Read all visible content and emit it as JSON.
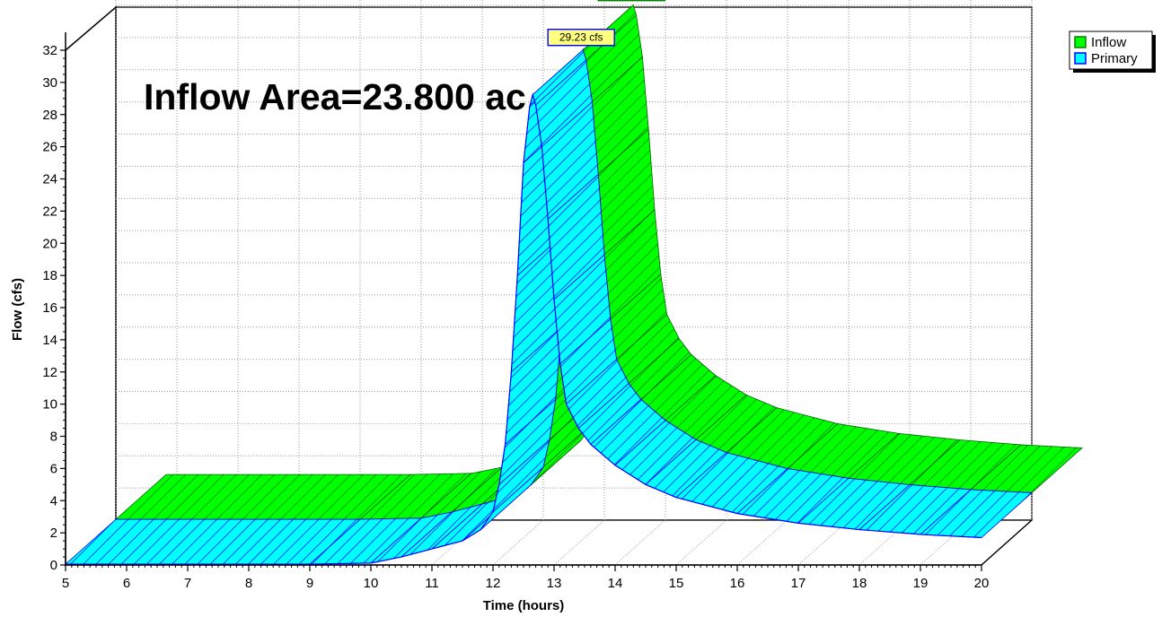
{
  "chart_data": {
    "type": "area",
    "xlabel": "Time  (hours)",
    "ylabel": "Flow  (cfs)",
    "annotation": "Inflow Area=23.800 ac",
    "xlim": [
      5,
      20
    ],
    "ylim": [
      0,
      32
    ],
    "x_ticks": [
      5,
      6,
      7,
      8,
      9,
      10,
      11,
      12,
      13,
      14,
      15,
      16,
      17,
      18,
      19,
      20
    ],
    "y_ticks": [
      0,
      2,
      4,
      6,
      8,
      10,
      12,
      14,
      16,
      18,
      20,
      22,
      24,
      26,
      28,
      30,
      32
    ],
    "legend_position": "top-right",
    "grid": true,
    "series": [
      {
        "name": "Inflow",
        "color": "#00ff00",
        "peak_label": "29.23 cfs",
        "peak_label_bg": "#ffff80",
        "points": [
          [
            5,
            0.05
          ],
          [
            9,
            0.05
          ],
          [
            10,
            0.12
          ],
          [
            10.5,
            0.5
          ],
          [
            11,
            1.0
          ],
          [
            11.5,
            1.5
          ],
          [
            11.8,
            2.2
          ],
          [
            12.0,
            3.3
          ],
          [
            12.1,
            5.0
          ],
          [
            12.2,
            7.5
          ],
          [
            12.3,
            12.0
          ],
          [
            12.4,
            18.0
          ],
          [
            12.5,
            25.0
          ],
          [
            12.6,
            28.5
          ],
          [
            12.65,
            29.23
          ],
          [
            12.7,
            28.6
          ],
          [
            12.8,
            26.0
          ],
          [
            12.9,
            21.5
          ],
          [
            13.0,
            16.5
          ],
          [
            13.1,
            12.5
          ],
          [
            13.2,
            10.0
          ],
          [
            13.4,
            8.5
          ],
          [
            13.6,
            7.5
          ],
          [
            14,
            6.2
          ],
          [
            14.5,
            5.0
          ],
          [
            15,
            4.2
          ],
          [
            16,
            3.2
          ],
          [
            17,
            2.6
          ],
          [
            18,
            2.2
          ],
          [
            19,
            1.9
          ],
          [
            20,
            1.7
          ]
        ]
      },
      {
        "name": "Primary",
        "color": "#00ffff",
        "peak_label": "29.23 cfs",
        "peak_label_bg": "#ffff80",
        "points": [
          [
            5,
            0.05
          ],
          [
            9,
            0.05
          ],
          [
            10,
            0.12
          ],
          [
            10.5,
            0.5
          ],
          [
            11,
            1.0
          ],
          [
            11.5,
            1.5
          ],
          [
            11.8,
            2.2
          ],
          [
            12.0,
            3.3
          ],
          [
            12.1,
            5.0
          ],
          [
            12.2,
            7.5
          ],
          [
            12.3,
            12.0
          ],
          [
            12.4,
            18.0
          ],
          [
            12.5,
            25.0
          ],
          [
            12.6,
            28.5
          ],
          [
            12.65,
            29.23
          ],
          [
            12.7,
            28.6
          ],
          [
            12.8,
            26.0
          ],
          [
            12.9,
            21.5
          ],
          [
            13.0,
            16.5
          ],
          [
            13.1,
            12.5
          ],
          [
            13.2,
            10.0
          ],
          [
            13.4,
            8.5
          ],
          [
            13.6,
            7.5
          ],
          [
            14,
            6.2
          ],
          [
            14.5,
            5.0
          ],
          [
            15,
            4.2
          ],
          [
            16,
            3.2
          ],
          [
            17,
            2.6
          ],
          [
            18,
            2.2
          ],
          [
            19,
            1.9
          ],
          [
            20,
            1.7
          ]
        ]
      }
    ]
  }
}
